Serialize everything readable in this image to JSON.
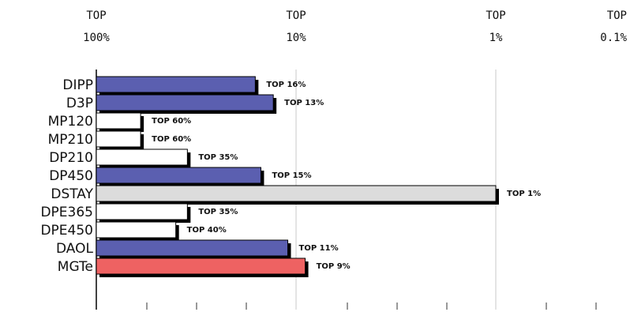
{
  "chart_data": {
    "type": "bar",
    "orientation": "horizontal",
    "scale": "log",
    "axis_ticks": [
      {
        "line1": "TOP",
        "line2": "100%",
        "value": 100
      },
      {
        "line1": "TOP",
        "line2": "10%",
        "value": 10
      },
      {
        "line1": "TOP",
        "line2": "1%",
        "value": 1
      },
      {
        "line1": "TOP",
        "line2": "0.1%",
        "value": 0.1
      }
    ],
    "grid": "vertical",
    "categories": [
      "DIPP",
      "D3P",
      "MP120",
      "MP210",
      "DP210",
      "DP450",
      "DSTAY",
      "DPE365",
      "DPE450",
      "DAOL",
      "MGTe"
    ],
    "values": [
      16,
      13,
      60,
      60,
      35,
      15,
      1,
      35,
      40,
      11,
      9
    ],
    "value_labels": [
      "TOP 16%",
      "TOP 13%",
      "TOP 60%",
      "TOP 60%",
      "TOP 35%",
      "TOP 15%",
      "TOP 1%",
      "TOP 35%",
      "TOP 40%",
      "TOP 11%",
      "TOP 9%"
    ],
    "bar_colors": [
      "#5b5fb0",
      "#5b5fb0",
      "#ffffff",
      "#ffffff",
      "#ffffff",
      "#5b5fb0",
      "#dcdcdc",
      "#ffffff",
      "#ffffff",
      "#5b5fb0",
      "#ee6262"
    ]
  }
}
